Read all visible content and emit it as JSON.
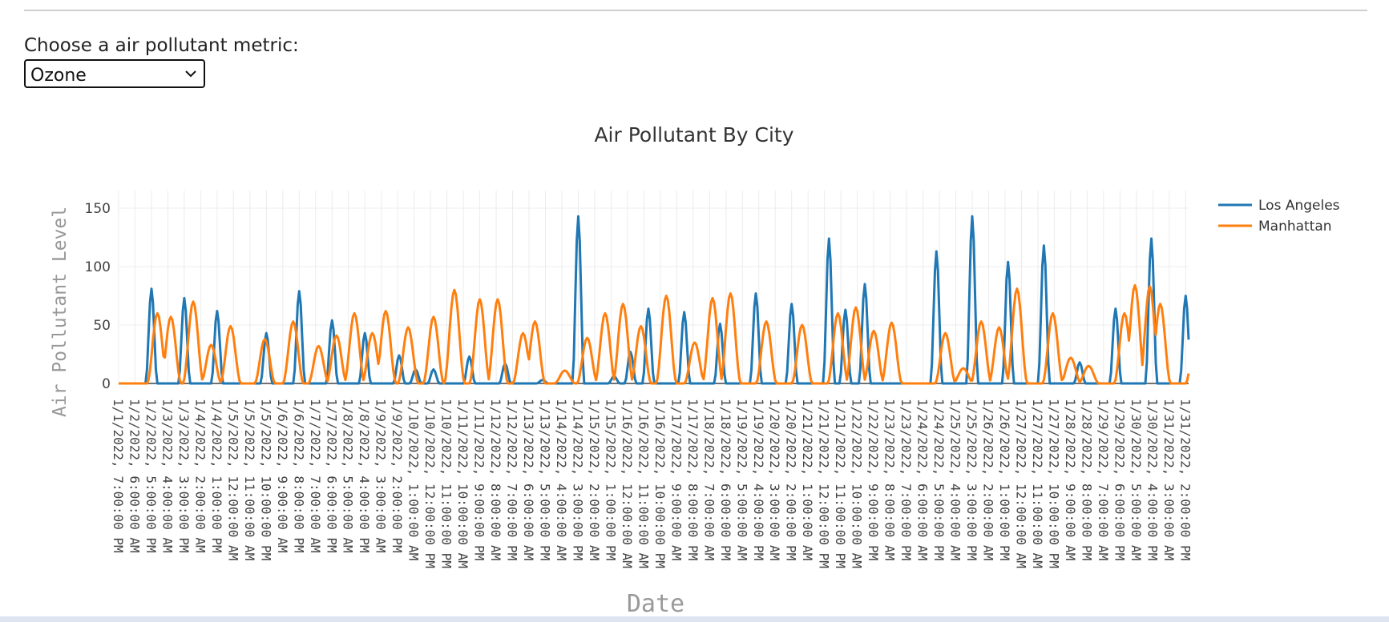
{
  "control": {
    "label": "Choose a air pollutant metric:",
    "selected": "Ozone",
    "icon": "chevron-down-icon"
  },
  "chart_data": {
    "type": "line",
    "title": "Air Pollutant By City",
    "xlabel": "Date",
    "ylabel": "Air Pollutant Level",
    "ylim": [
      0,
      150
    ],
    "yticks": [
      0,
      50,
      100,
      150
    ],
    "grid": true,
    "legend_position": "top-right",
    "x_start": "1/1/2022, 7:00:00 PM",
    "x_tick_labels": [
      "1/1/2022, 7:00:00 PM",
      "1/2/2022, 6:00:00 AM",
      "1/2/2022, 5:00:00 PM",
      "1/3/2022, 4:00:00 AM",
      "1/3/2022, 3:00:00 PM",
      "1/4/2022, 2:00:00 AM",
      "1/4/2022, 1:00:00 PM",
      "1/5/2022, 12:00:00 AM",
      "1/5/2022, 11:00:00 AM",
      "1/5/2022, 10:00:00 PM",
      "1/6/2022, 9:00:00 AM",
      "1/6/2022, 8:00:00 PM",
      "1/7/2022, 7:00:00 AM",
      "1/7/2022, 6:00:00 PM",
      "1/8/2022, 5:00:00 AM",
      "1/8/2022, 4:00:00 PM",
      "1/9/2022, 3:00:00 AM",
      "1/9/2022, 2:00:00 PM",
      "1/10/2022, 1:00:00 AM",
      "1/10/2022, 12:00:00 PM",
      "1/10/2022, 11:00:00 PM",
      "1/11/2022, 10:00:00 AM",
      "1/11/2022, 9:00:00 PM",
      "1/12/2022, 8:00:00 AM",
      "1/12/2022, 7:00:00 PM",
      "1/13/2022, 6:00:00 AM",
      "1/13/2022, 5:00:00 PM",
      "1/14/2022, 4:00:00 AM",
      "1/14/2022, 3:00:00 PM",
      "1/15/2022, 2:00:00 AM",
      "1/15/2022, 1:00:00 PM",
      "1/16/2022, 12:00:00 AM",
      "1/16/2022, 11:00:00 AM",
      "1/16/2022, 10:00:00 PM",
      "1/17/2022, 9:00:00 AM",
      "1/17/2022, 8:00:00 PM",
      "1/18/2022, 7:00:00 AM",
      "1/18/2022, 6:00:00 PM",
      "1/19/2022, 5:00:00 AM",
      "1/19/2022, 4:00:00 PM",
      "1/20/2022, 3:00:00 AM",
      "1/20/2022, 2:00:00 PM",
      "1/21/2022, 1:00:00 AM",
      "1/21/2022, 12:00:00 PM",
      "1/21/2022, 11:00:00 PM",
      "1/22/2022, 10:00:00 AM",
      "1/22/2022, 9:00:00 PM",
      "1/23/2022, 8:00:00 AM",
      "1/23/2022, 7:00:00 PM",
      "1/24/2022, 6:00:00 AM",
      "1/24/2022, 5:00:00 PM",
      "1/25/2022, 4:00:00 AM",
      "1/25/2022, 3:00:00 PM",
      "1/26/2022, 2:00:00 AM",
      "1/26/2022, 1:00:00 PM",
      "1/27/2022, 12:00:00 AM",
      "1/27/2022, 11:00:00 AM",
      "1/27/2022, 10:00:00 PM",
      "1/28/2022, 9:00:00 AM",
      "1/28/2022, 8:00:00 PM",
      "1/29/2022, 7:00:00 AM",
      "1/29/2022, 6:00:00 PM",
      "1/30/2022, 5:00:00 AM",
      "1/30/2022, 4:00:00 PM",
      "1/31/2022, 3:00:00 AM",
      "1/31/2022, 2:00:00 PM"
    ],
    "series": [
      {
        "name": "Los Angeles",
        "color": "#1f77b4",
        "peaks": [
          [
            "1/2/2022, 5:00:00 PM",
            81
          ],
          [
            "1/3/2022, 3:00:00 PM",
            73
          ],
          [
            "1/4/2022, 1:00:00 PM",
            62
          ],
          [
            "1/5/2022, 10:00:00 PM",
            43
          ],
          [
            "1/6/2022, 8:00:00 PM",
            79
          ],
          [
            "1/7/2022, 6:00:00 PM",
            54
          ],
          [
            "1/8/2022, 4:00:00 PM",
            43
          ],
          [
            "1/9/2022, 3:00:00 PM",
            24
          ],
          [
            "1/10/2022, 2:00:00 AM",
            12
          ],
          [
            "1/10/2022, 2:00:00 PM",
            12
          ],
          [
            "1/11/2022, 2:00:00 PM",
            23
          ],
          [
            "1/12/2022, 2:00:00 PM",
            17
          ],
          [
            "1/13/2022, 3:00:00 PM",
            3
          ],
          [
            "1/14/2022, 3:00:00 PM",
            143
          ],
          [
            "1/15/2022, 3:00:00 PM",
            6
          ],
          [
            "1/16/2022, 2:00:00 AM",
            27
          ],
          [
            "1/16/2022, 2:00:00 PM",
            64
          ],
          [
            "1/17/2022, 2:00:00 PM",
            61
          ],
          [
            "1/18/2022, 2:00:00 PM",
            51
          ],
          [
            "1/19/2022, 2:00:00 PM",
            77
          ],
          [
            "1/20/2022, 2:00:00 PM",
            68
          ],
          [
            "1/21/2022, 3:00:00 PM",
            124
          ],
          [
            "1/22/2022, 2:00:00 AM",
            63
          ],
          [
            "1/22/2022, 3:00:00 PM",
            85
          ],
          [
            "1/24/2022, 3:00:00 PM",
            113
          ],
          [
            "1/25/2022, 3:00:00 PM",
            143
          ],
          [
            "1/26/2022, 3:00:00 PM",
            104
          ],
          [
            "1/27/2022, 3:00:00 PM",
            118
          ],
          [
            "1/28/2022, 3:00:00 PM",
            18
          ],
          [
            "1/29/2022, 3:00:00 PM",
            64
          ],
          [
            "1/30/2022, 3:00:00 PM",
            124
          ],
          [
            "1/31/2022, 2:00:00 PM",
            75
          ]
        ]
      },
      {
        "name": "Manhattan",
        "color": "#ff7f0e",
        "peaks": [
          [
            "1/2/2022, 9:00:00 PM",
            60
          ],
          [
            "1/3/2022, 6:00:00 AM",
            57
          ],
          [
            "1/3/2022, 9:00:00 PM",
            70
          ],
          [
            "1/4/2022, 9:00:00 AM",
            33
          ],
          [
            "1/4/2022, 10:00:00 PM",
            49
          ],
          [
            "1/5/2022, 9:00:00 PM",
            38
          ],
          [
            "1/6/2022, 4:00:00 PM",
            53
          ],
          [
            "1/7/2022, 9:00:00 AM",
            32
          ],
          [
            "1/7/2022, 9:00:00 PM",
            41
          ],
          [
            "1/8/2022, 9:00:00 AM",
            60
          ],
          [
            "1/8/2022, 9:00:00 PM",
            43
          ],
          [
            "1/9/2022, 6:00:00 AM",
            62
          ],
          [
            "1/9/2022, 9:00:00 PM",
            48
          ],
          [
            "1/10/2022, 2:00:00 PM",
            57
          ],
          [
            "1/11/2022, 4:00:00 AM",
            80
          ],
          [
            "1/11/2022, 9:00:00 PM",
            72
          ],
          [
            "1/12/2022, 9:00:00 AM",
            72
          ],
          [
            "1/13/2022, 2:00:00 AM",
            43
          ],
          [
            "1/13/2022, 10:00:00 AM",
            53
          ],
          [
            "1/14/2022, 6:00:00 AM",
            11
          ],
          [
            "1/14/2022, 9:00:00 PM",
            39
          ],
          [
            "1/15/2022, 9:00:00 AM",
            60
          ],
          [
            "1/15/2022, 9:00:00 PM",
            68
          ],
          [
            "1/16/2022, 9:00:00 AM",
            49
          ],
          [
            "1/17/2022, 2:00:00 AM",
            75
          ],
          [
            "1/17/2022, 9:00:00 PM",
            35
          ],
          [
            "1/18/2022, 9:00:00 AM",
            73
          ],
          [
            "1/18/2022, 9:00:00 PM",
            77
          ],
          [
            "1/19/2022, 9:00:00 PM",
            53
          ],
          [
            "1/20/2022, 9:00:00 PM",
            50
          ],
          [
            "1/21/2022, 9:00:00 PM",
            60
          ],
          [
            "1/22/2022, 9:00:00 AM",
            65
          ],
          [
            "1/22/2022, 9:00:00 PM",
            45
          ],
          [
            "1/23/2022, 9:00:00 AM",
            52
          ],
          [
            "1/24/2022, 9:00:00 PM",
            43
          ],
          [
            "1/25/2022, 9:00:00 AM",
            13
          ],
          [
            "1/25/2022, 9:00:00 PM",
            53
          ],
          [
            "1/26/2022, 9:00:00 AM",
            48
          ],
          [
            "1/26/2022, 9:00:00 PM",
            81
          ],
          [
            "1/27/2022, 9:00:00 PM",
            60
          ],
          [
            "1/28/2022, 9:00:00 AM",
            22
          ],
          [
            "1/28/2022, 9:00:00 PM",
            15
          ],
          [
            "1/29/2022, 9:00:00 PM",
            60
          ],
          [
            "1/30/2022, 4:00:00 AM",
            84
          ],
          [
            "1/30/2022, 2:00:00 PM",
            83
          ],
          [
            "1/30/2022, 9:00:00 PM",
            68
          ],
          [
            "1/31/2022, 9:00:00 PM",
            45
          ]
        ]
      }
    ]
  }
}
